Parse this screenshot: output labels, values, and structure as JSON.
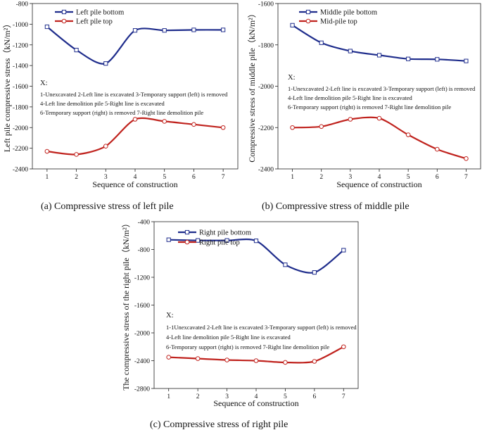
{
  "chart_data": [
    {
      "type": "line",
      "panel": "a",
      "caption": "(a) Compressive stress of left pile",
      "xlabel": "Sequence of construction",
      "ylabel": "Left pile compressive stress（kN/m²）",
      "x": [
        1,
        2,
        3,
        4,
        5,
        6,
        7
      ],
      "xlim": [
        0.5,
        7.5
      ],
      "ylim": [
        -2400,
        -800
      ],
      "yticks": [
        -2400,
        -2200,
        -2000,
        -1800,
        -1600,
        -1400,
        -1200,
        -1000,
        -800
      ],
      "series": [
        {
          "name": "Left pile bottom",
          "color": "#1f2d8c",
          "marker": "square",
          "values": [
            -1025,
            -1250,
            -1380,
            -1060,
            -1060,
            -1055,
            -1055
          ]
        },
        {
          "name": "Left pile top",
          "color": "#c0231e",
          "marker": "circle",
          "values": [
            -2230,
            -2260,
            -2180,
            -1920,
            -1940,
            -1970,
            -2000
          ]
        }
      ],
      "note": {
        "title": "X:",
        "lines": [
          "1-Unexcavated      2-Left line is excavated  3-Temporary support (left) is removed",
          "4-Left line demolition pile          5-Right line is excavated",
          "6-Temporary support (right) is removed        7-Right line demolition pile"
        ]
      }
    },
    {
      "type": "line",
      "panel": "b",
      "caption": "(b) Compressive stress of middle pile",
      "xlabel": "Sequence of construction",
      "ylabel": "Compressive stress of middle pile（kN/m²）",
      "x": [
        1,
        2,
        3,
        4,
        5,
        6,
        7
      ],
      "xlim": [
        0.5,
        7.5
      ],
      "ylim": [
        -2400,
        -1600
      ],
      "yticks": [
        -2400,
        -2200,
        -2000,
        -1800,
        -1600
      ],
      "series": [
        {
          "name": "Middle pile bottom",
          "color": "#1f2d8c",
          "marker": "square",
          "values": [
            -1705,
            -1790,
            -1830,
            -1850,
            -1868,
            -1870,
            -1878
          ]
        },
        {
          "name": "Mid-pile top",
          "color": "#c0231e",
          "marker": "circle",
          "values": [
            -2200,
            -2195,
            -2160,
            -2155,
            -2235,
            -2305,
            -2350
          ]
        }
      ],
      "note": {
        "title": "X:",
        "lines": [
          "1-Unexcavated      2-Left line is excavated  3-Temporary support (left) is removed",
          "4-Left line demolition pile          5-Right line is excavated",
          "6-Temporary support (right) is removed          7-Right line demolition pile"
        ]
      }
    },
    {
      "type": "line",
      "panel": "c",
      "caption": "(c) Compressive stress of right pile",
      "xlabel": "Sequence of construction",
      "ylabel": "The compressive stress of the right pile（kN/m²）",
      "x": [
        1,
        2,
        3,
        4,
        5,
        6,
        7
      ],
      "xlim": [
        0.5,
        7.5
      ],
      "ylim": [
        -2800,
        -400
      ],
      "yticks": [
        -2800,
        -2400,
        -2000,
        -1600,
        -1200,
        -800,
        -400
      ],
      "series": [
        {
          "name": "Right pile bottom",
          "color": "#1f2d8c",
          "marker": "square",
          "values": [
            -660,
            -670,
            -670,
            -675,
            -1020,
            -1130,
            -810
          ]
        },
        {
          "name": "Right pile top",
          "color": "#c0231e",
          "marker": "circle",
          "values": [
            -2350,
            -2370,
            -2390,
            -2400,
            -2425,
            -2410,
            -2200
          ]
        }
      ],
      "note": {
        "title": "X:",
        "lines": [
          "1-1Unexcavated      2-Left line is excavated  3-Temporary support (left) is removed",
          "4-Left line demolition pile          5-Right line is excavated",
          "6-Temporary support (right) is removed          7-Right line demolition pile"
        ]
      }
    }
  ]
}
